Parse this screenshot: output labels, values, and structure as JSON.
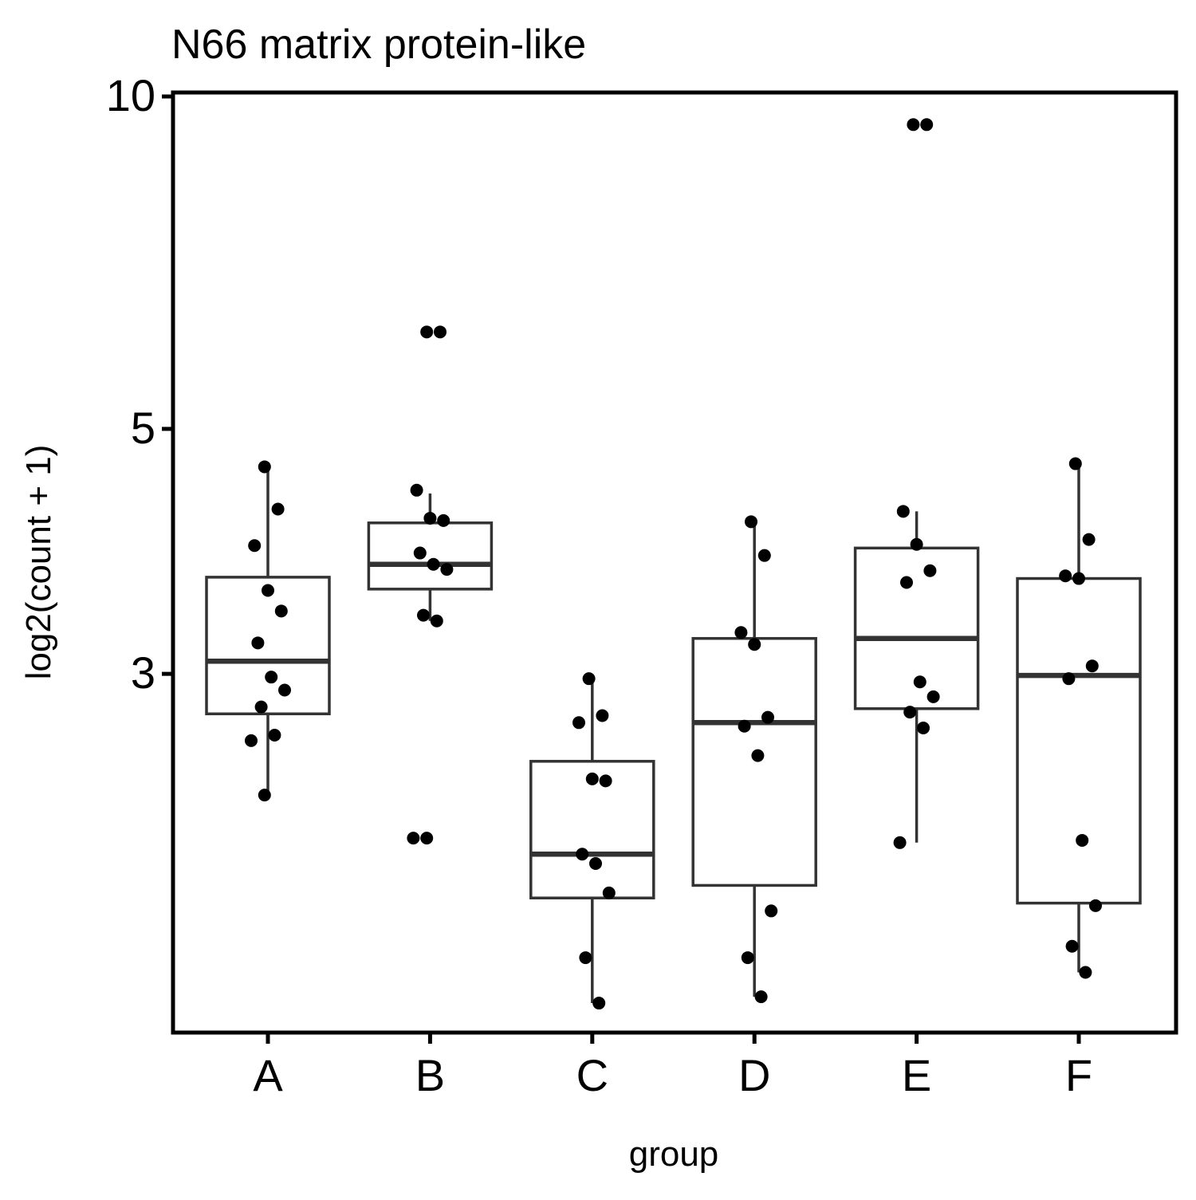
{
  "chart_data": {
    "type": "box",
    "title": "N66 matrix protein-like",
    "xlabel": "group",
    "ylabel": "log2(count + 1)",
    "y_scale": "log",
    "ylim": [
      1.42,
      10
    ],
    "yticks": [
      3,
      5,
      10
    ],
    "ytick_labels": [
      "3",
      "5",
      "10"
    ],
    "grid": false,
    "categories": [
      "A",
      "B",
      "C",
      "D",
      "E",
      "F"
    ],
    "boxes": [
      {
        "group": "A",
        "whisker_low": 2.33,
        "q1": 2.76,
        "median": 3.08,
        "q3": 3.67,
        "whisker_high": 4.58
      },
      {
        "group": "B",
        "whisker_low": 3.35,
        "q1": 3.58,
        "median": 3.77,
        "q3": 4.11,
        "whisker_high": 4.37
      },
      {
        "group": "C",
        "whisker_low": 1.51,
        "q1": 1.88,
        "median": 2.06,
        "q3": 2.5,
        "whisker_high": 2.97
      },
      {
        "group": "D",
        "whisker_low": 1.53,
        "q1": 1.93,
        "median": 2.71,
        "q3": 3.23,
        "whisker_high": 4.12
      },
      {
        "group": "E",
        "whisker_low": 2.11,
        "q1": 2.79,
        "median": 3.23,
        "q3": 3.9,
        "whisker_high": 4.21
      },
      {
        "group": "F",
        "whisker_low": 1.61,
        "q1": 1.86,
        "median": 2.99,
        "q3": 3.66,
        "whisker_high": 4.65
      }
    ],
    "points": [
      {
        "group": "A",
        "y": 4.62
      },
      {
        "group": "A",
        "y": 4.23
      },
      {
        "group": "A",
        "y": 3.92
      },
      {
        "group": "A",
        "y": 3.57
      },
      {
        "group": "A",
        "y": 3.42
      },
      {
        "group": "A",
        "y": 3.2
      },
      {
        "group": "A",
        "y": 2.98
      },
      {
        "group": "A",
        "y": 2.9
      },
      {
        "group": "A",
        "y": 2.8
      },
      {
        "group": "A",
        "y": 2.64
      },
      {
        "group": "A",
        "y": 2.61
      },
      {
        "group": "A",
        "y": 2.33
      },
      {
        "group": "B",
        "y": 6.12
      },
      {
        "group": "B",
        "y": 6.12
      },
      {
        "group": "B",
        "y": 4.4
      },
      {
        "group": "B",
        "y": 4.15
      },
      {
        "group": "B",
        "y": 4.13
      },
      {
        "group": "B",
        "y": 3.86
      },
      {
        "group": "B",
        "y": 3.77
      },
      {
        "group": "B",
        "y": 3.73
      },
      {
        "group": "B",
        "y": 3.39
      },
      {
        "group": "B",
        "y": 3.35
      },
      {
        "group": "B",
        "y": 2.13
      },
      {
        "group": "B",
        "y": 2.13
      },
      {
        "group": "C",
        "y": 2.97
      },
      {
        "group": "C",
        "y": 2.75
      },
      {
        "group": "C",
        "y": 2.71
      },
      {
        "group": "C",
        "y": 2.41
      },
      {
        "group": "C",
        "y": 2.4
      },
      {
        "group": "C",
        "y": 2.06
      },
      {
        "group": "C",
        "y": 2.02
      },
      {
        "group": "C",
        "y": 1.9
      },
      {
        "group": "C",
        "y": 1.66
      },
      {
        "group": "C",
        "y": 1.51
      },
      {
        "group": "D",
        "y": 4.12
      },
      {
        "group": "D",
        "y": 3.84
      },
      {
        "group": "D",
        "y": 3.27
      },
      {
        "group": "D",
        "y": 3.19
      },
      {
        "group": "D",
        "y": 2.74
      },
      {
        "group": "D",
        "y": 2.69
      },
      {
        "group": "D",
        "y": 2.53
      },
      {
        "group": "D",
        "y": 1.83
      },
      {
        "group": "D",
        "y": 1.66
      },
      {
        "group": "D",
        "y": 1.53
      },
      {
        "group": "E",
        "y": 9.43
      },
      {
        "group": "E",
        "y": 9.43
      },
      {
        "group": "E",
        "y": 4.21
      },
      {
        "group": "E",
        "y": 3.93
      },
      {
        "group": "E",
        "y": 3.72
      },
      {
        "group": "E",
        "y": 3.63
      },
      {
        "group": "E",
        "y": 2.95
      },
      {
        "group": "E",
        "y": 2.86
      },
      {
        "group": "E",
        "y": 2.77
      },
      {
        "group": "E",
        "y": 2.68
      },
      {
        "group": "E",
        "y": 2.11
      },
      {
        "group": "F",
        "y": 4.65
      },
      {
        "group": "F",
        "y": 3.97
      },
      {
        "group": "F",
        "y": 3.68
      },
      {
        "group": "F",
        "y": 3.66
      },
      {
        "group": "F",
        "y": 3.05
      },
      {
        "group": "F",
        "y": 2.97
      },
      {
        "group": "F",
        "y": 2.12
      },
      {
        "group": "F",
        "y": 1.85
      },
      {
        "group": "F",
        "y": 1.7
      },
      {
        "group": "F",
        "y": 1.61
      }
    ]
  }
}
